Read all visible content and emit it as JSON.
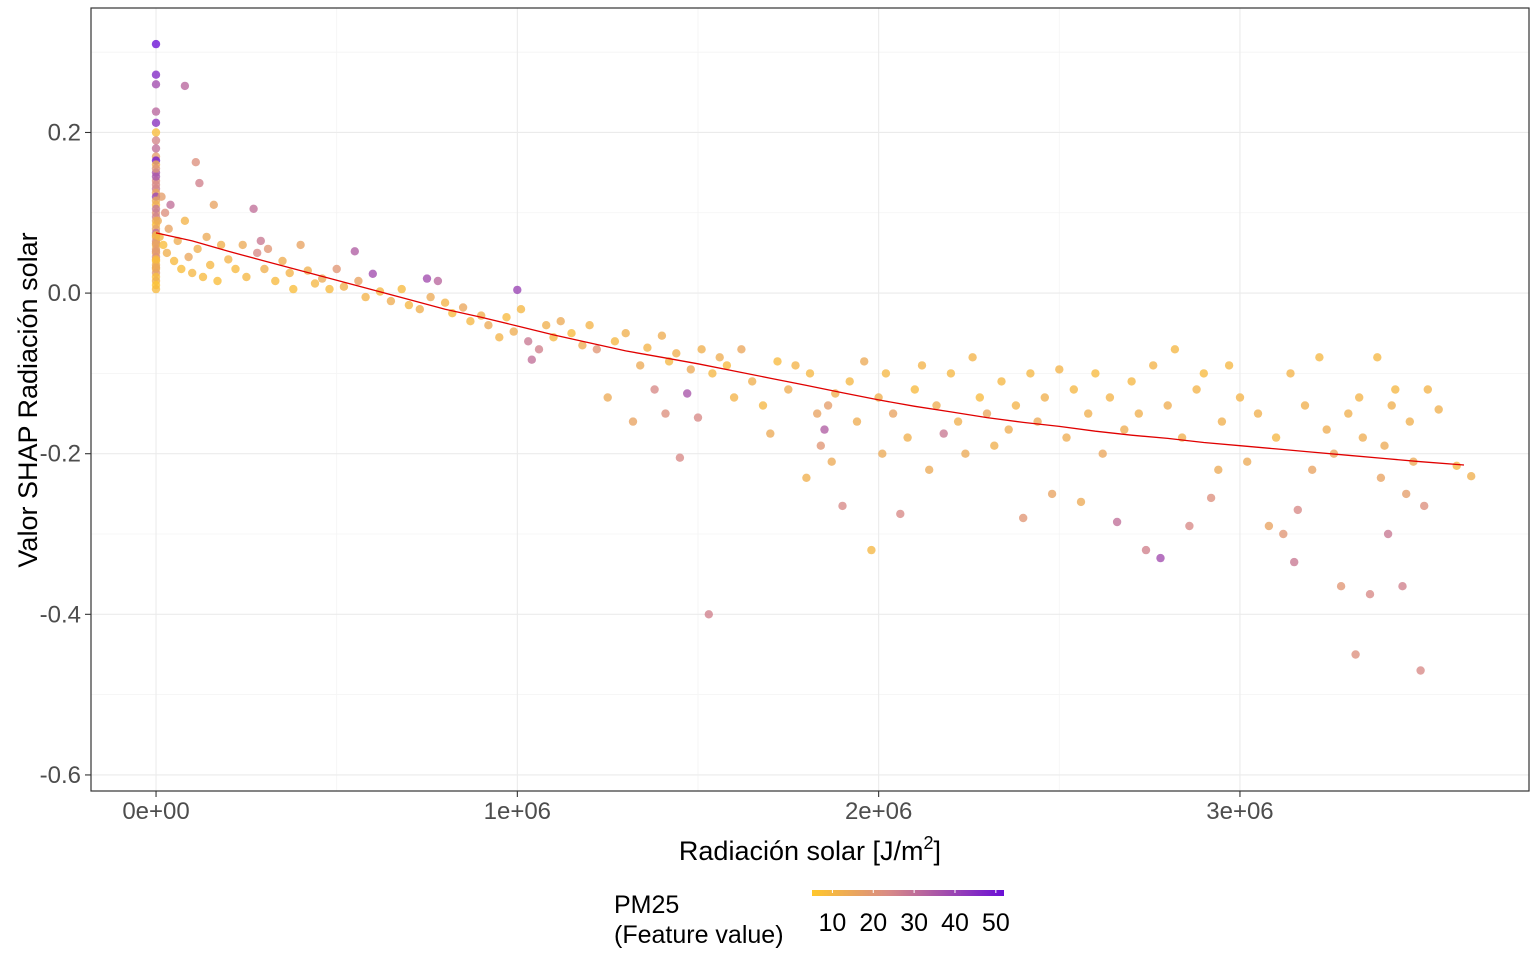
{
  "chart_data": {
    "type": "scatter",
    "xlabel": "Radiación solar [J/m",
    "xlabel_sup": "2",
    "xlabel_end": "]",
    "ylabel": "Valor SHAP Radiación solar",
    "xlim": [
      -180000,
      3800000
    ],
    "ylim": [
      -0.62,
      0.355
    ],
    "x_ticks": [
      0,
      1000000,
      2000000,
      3000000
    ],
    "x_tick_labels": [
      "0e+00",
      "1e+06",
      "2e+06",
      "3e+06"
    ],
    "y_ticks": [
      -0.6,
      -0.4,
      -0.2,
      0.0,
      0.2
    ],
    "y_tick_labels": [
      "-0.6",
      "-0.4",
      "-0.2",
      "0.0",
      "0.2"
    ],
    "grid": true,
    "legend": {
      "position": "bottom",
      "title_line1": "PM25",
      "title_line2": "(Feature value)",
      "range": [
        5,
        52
      ],
      "ticks": [
        10,
        20,
        30,
        40,
        50
      ],
      "tick_labels": [
        "10",
        "20",
        "30",
        "40",
        "50"
      ],
      "color_low": "#ffc72c",
      "color_mid": "#d88a86",
      "color_high": "#6a0fd6"
    },
    "trend_color": "#e00000",
    "trend_line": [
      [
        0,
        0.075
      ],
      [
        100000,
        0.065
      ],
      [
        200000,
        0.052
      ],
      [
        300000,
        0.04
      ],
      [
        400000,
        0.028
      ],
      [
        500000,
        0.016
      ],
      [
        600000,
        0.004
      ],
      [
        700000,
        -0.008
      ],
      [
        800000,
        -0.02
      ],
      [
        900000,
        -0.03
      ],
      [
        1000000,
        -0.041
      ],
      [
        1100000,
        -0.052
      ],
      [
        1200000,
        -0.062
      ],
      [
        1300000,
        -0.072
      ],
      [
        1400000,
        -0.08
      ],
      [
        1500000,
        -0.088
      ],
      [
        1600000,
        -0.097
      ],
      [
        1700000,
        -0.106
      ],
      [
        1800000,
        -0.115
      ],
      [
        1900000,
        -0.124
      ],
      [
        2000000,
        -0.133
      ],
      [
        2100000,
        -0.141
      ],
      [
        2200000,
        -0.148
      ],
      [
        2300000,
        -0.155
      ],
      [
        2400000,
        -0.161
      ],
      [
        2500000,
        -0.166
      ],
      [
        2600000,
        -0.172
      ],
      [
        2700000,
        -0.177
      ],
      [
        2800000,
        -0.181
      ],
      [
        2900000,
        -0.186
      ],
      [
        3000000,
        -0.19
      ],
      [
        3100000,
        -0.194
      ],
      [
        3200000,
        -0.198
      ],
      [
        3300000,
        -0.202
      ],
      [
        3400000,
        -0.206
      ],
      [
        3500000,
        -0.21
      ],
      [
        3620000,
        -0.214
      ]
    ],
    "points_format": "[radiacion, shap, pm25]",
    "points": [
      [
        0,
        0.31,
        52
      ],
      [
        0,
        0.272,
        46
      ],
      [
        0,
        0.26,
        38
      ],
      [
        0,
        0.226,
        32
      ],
      [
        0,
        0.212,
        44
      ],
      [
        0,
        0.2,
        8
      ],
      [
        0,
        0.19,
        25
      ],
      [
        0,
        0.18,
        30
      ],
      [
        0,
        0.17,
        18
      ],
      [
        0,
        0.165,
        50
      ],
      [
        0,
        0.16,
        12
      ],
      [
        0,
        0.15,
        35
      ],
      [
        0,
        0.14,
        22
      ],
      [
        0,
        0.13,
        28
      ],
      [
        0,
        0.125,
        15
      ],
      [
        0,
        0.12,
        40
      ],
      [
        0,
        0.11,
        10
      ],
      [
        0,
        0.1,
        20
      ],
      [
        0,
        0.095,
        26
      ],
      [
        0,
        0.09,
        14
      ],
      [
        0,
        0.085,
        8
      ],
      [
        0,
        0.08,
        17
      ],
      [
        0,
        0.075,
        30
      ],
      [
        0,
        0.07,
        12
      ],
      [
        0,
        0.065,
        22
      ],
      [
        0,
        0.06,
        9
      ],
      [
        0,
        0.055,
        16
      ],
      [
        0,
        0.05,
        11
      ],
      [
        0,
        0.045,
        24
      ],
      [
        0,
        0.04,
        7
      ],
      [
        0,
        0.035,
        13
      ],
      [
        0,
        0.03,
        10
      ],
      [
        0,
        0.025,
        19
      ],
      [
        0,
        0.02,
        8
      ],
      [
        0,
        0.015,
        12
      ],
      [
        0,
        0.01,
        6
      ],
      [
        0,
        0.005,
        9
      ],
      [
        0,
        0.145,
        36
      ],
      [
        0,
        0.155,
        21
      ],
      [
        0,
        0.105,
        28
      ],
      [
        0,
        0.115,
        14
      ],
      [
        0,
        0.135,
        24
      ],
      [
        0,
        0.062,
        18
      ],
      [
        0,
        0.032,
        15
      ],
      [
        0,
        0.052,
        20
      ],
      [
        0,
        0.042,
        9
      ],
      [
        0,
        0.072,
        11
      ],
      [
        5000,
        0.09,
        14
      ],
      [
        10000,
        0.07,
        10
      ],
      [
        15000,
        0.12,
        18
      ],
      [
        20000,
        0.06,
        8
      ],
      [
        25000,
        0.1,
        22
      ],
      [
        30000,
        0.05,
        12
      ],
      [
        35000,
        0.08,
        16
      ],
      [
        40000,
        0.11,
        30
      ],
      [
        50000,
        0.04,
        9
      ],
      [
        60000,
        0.065,
        13
      ],
      [
        70000,
        0.03,
        8
      ],
      [
        80000,
        0.258,
        32
      ],
      [
        80000,
        0.09,
        11
      ],
      [
        90000,
        0.045,
        15
      ],
      [
        100000,
        0.025,
        10
      ],
      [
        110000,
        0.163,
        22
      ],
      [
        115000,
        0.055,
        12
      ],
      [
        120000,
        0.137,
        26
      ],
      [
        130000,
        0.02,
        9
      ],
      [
        140000,
        0.07,
        14
      ],
      [
        150000,
        0.035,
        10
      ],
      [
        160000,
        0.11,
        16
      ],
      [
        170000,
        0.015,
        8
      ],
      [
        180000,
        0.06,
        12
      ],
      [
        200000,
        0.042,
        11
      ],
      [
        220000,
        0.03,
        9
      ],
      [
        240000,
        0.06,
        14
      ],
      [
        250000,
        0.02,
        10
      ],
      [
        270000,
        0.105,
        30
      ],
      [
        280000,
        0.05,
        24
      ],
      [
        290000,
        0.065,
        28
      ],
      [
        300000,
        0.03,
        12
      ],
      [
        310000,
        0.055,
        20
      ],
      [
        330000,
        0.015,
        9
      ],
      [
        350000,
        0.04,
        13
      ],
      [
        370000,
        0.025,
        11
      ],
      [
        380000,
        0.005,
        8
      ],
      [
        400000,
        0.06,
        16
      ],
      [
        420000,
        0.028,
        12
      ],
      [
        440000,
        0.012,
        10
      ],
      [
        460000,
        0.018,
        14
      ],
      [
        480000,
        0.005,
        9
      ],
      [
        500000,
        0.03,
        20
      ],
      [
        520000,
        0.008,
        12
      ],
      [
        550000,
        0.052,
        34
      ],
      [
        560000,
        0.015,
        16
      ],
      [
        580000,
        -0.005,
        11
      ],
      [
        600000,
        0.024,
        38
      ],
      [
        620000,
        0.002,
        10
      ],
      [
        650000,
        -0.01,
        13
      ],
      [
        680000,
        0.005,
        9
      ],
      [
        700000,
        -0.015,
        10
      ],
      [
        730000,
        -0.02,
        12
      ],
      [
        750000,
        0.018,
        38
      ],
      [
        760000,
        -0.005,
        14
      ],
      [
        780000,
        0.015,
        32
      ],
      [
        800000,
        -0.012,
        11
      ],
      [
        820000,
        -0.025,
        9
      ],
      [
        850000,
        -0.018,
        15
      ],
      [
        870000,
        -0.035,
        10
      ],
      [
        900000,
        -0.028,
        12
      ],
      [
        920000,
        -0.04,
        14
      ],
      [
        950000,
        -0.055,
        11
      ],
      [
        970000,
        -0.03,
        9
      ],
      [
        990000,
        -0.048,
        13
      ],
      [
        1000000,
        0.004,
        40
      ],
      [
        1010000,
        -0.02,
        10
      ],
      [
        1030000,
        -0.06,
        28
      ],
      [
        1040000,
        -0.083,
        30
      ],
      [
        1060000,
        -0.07,
        26
      ],
      [
        1080000,
        -0.04,
        12
      ],
      [
        1100000,
        -0.055,
        10
      ],
      [
        1120000,
        -0.035,
        14
      ],
      [
        1150000,
        -0.05,
        9
      ],
      [
        1180000,
        -0.065,
        13
      ],
      [
        1200000,
        -0.04,
        11
      ],
      [
        1220000,
        -0.07,
        20
      ],
      [
        1250000,
        -0.13,
        14
      ],
      [
        1270000,
        -0.06,
        10
      ],
      [
        1300000,
        -0.05,
        12
      ],
      [
        1320000,
        -0.16,
        16
      ],
      [
        1340000,
        -0.09,
        14
      ],
      [
        1360000,
        -0.068,
        11
      ],
      [
        1380000,
        -0.12,
        24
      ],
      [
        1400000,
        -0.053,
        13
      ],
      [
        1410000,
        -0.15,
        22
      ],
      [
        1420000,
        -0.085,
        10
      ],
      [
        1440000,
        -0.075,
        12
      ],
      [
        1450000,
        -0.205,
        24
      ],
      [
        1470000,
        -0.125,
        36
      ],
      [
        1480000,
        -0.095,
        14
      ],
      [
        1500000,
        -0.155,
        24
      ],
      [
        1510000,
        -0.07,
        12
      ],
      [
        1530000,
        -0.4,
        26
      ],
      [
        1540000,
        -0.1,
        10
      ],
      [
        1560000,
        -0.08,
        13
      ],
      [
        1580000,
        -0.09,
        9
      ],
      [
        1600000,
        -0.13,
        11
      ],
      [
        1620000,
        -0.07,
        15
      ],
      [
        1650000,
        -0.11,
        12
      ],
      [
        1680000,
        -0.14,
        10
      ],
      [
        1700000,
        -0.175,
        14
      ],
      [
        1720000,
        -0.085,
        9
      ],
      [
        1750000,
        -0.12,
        13
      ],
      [
        1770000,
        -0.09,
        11
      ],
      [
        1800000,
        -0.23,
        12
      ],
      [
        1810000,
        -0.1,
        10
      ],
      [
        1830000,
        -0.15,
        16
      ],
      [
        1840000,
        -0.19,
        20
      ],
      [
        1850000,
        -0.17,
        34
      ],
      [
        1860000,
        -0.14,
        18
      ],
      [
        1870000,
        -0.21,
        14
      ],
      [
        1880000,
        -0.125,
        12
      ],
      [
        1900000,
        -0.265,
        24
      ],
      [
        1920000,
        -0.11,
        10
      ],
      [
        1940000,
        -0.16,
        13
      ],
      [
        1960000,
        -0.085,
        14
      ],
      [
        1980000,
        -0.32,
        10
      ],
      [
        2000000,
        -0.13,
        12
      ],
      [
        2010000,
        -0.2,
        14
      ],
      [
        2020000,
        -0.1,
        10
      ],
      [
        2040000,
        -0.15,
        16
      ],
      [
        2060000,
        -0.275,
        24
      ],
      [
        2080000,
        -0.18,
        12
      ],
      [
        2100000,
        -0.12,
        9
      ],
      [
        2120000,
        -0.09,
        11
      ],
      [
        2140000,
        -0.22,
        14
      ],
      [
        2160000,
        -0.14,
        13
      ],
      [
        2180000,
        -0.175,
        28
      ],
      [
        2200000,
        -0.1,
        10
      ],
      [
        2220000,
        -0.16,
        12
      ],
      [
        2240000,
        -0.2,
        14
      ],
      [
        2260000,
        -0.08,
        11
      ],
      [
        2280000,
        -0.13,
        9
      ],
      [
        2300000,
        -0.15,
        15
      ],
      [
        2320000,
        -0.19,
        12
      ],
      [
        2340000,
        -0.11,
        10
      ],
      [
        2360000,
        -0.17,
        13
      ],
      [
        2380000,
        -0.14,
        11
      ],
      [
        2400000,
        -0.28,
        20
      ],
      [
        2420000,
        -0.1,
        10
      ],
      [
        2440000,
        -0.16,
        14
      ],
      [
        2460000,
        -0.13,
        12
      ],
      [
        2480000,
        -0.25,
        16
      ],
      [
        2500000,
        -0.095,
        11
      ],
      [
        2520000,
        -0.18,
        13
      ],
      [
        2540000,
        -0.12,
        10
      ],
      [
        2560000,
        -0.26,
        14
      ],
      [
        2580000,
        -0.15,
        12
      ],
      [
        2600000,
        -0.1,
        9
      ],
      [
        2620000,
        -0.2,
        15
      ],
      [
        2640000,
        -0.13,
        11
      ],
      [
        2660000,
        -0.285,
        30
      ],
      [
        2680000,
        -0.17,
        13
      ],
      [
        2700000,
        -0.11,
        10
      ],
      [
        2720000,
        -0.15,
        12
      ],
      [
        2740000,
        -0.32,
        26
      ],
      [
        2760000,
        -0.09,
        11
      ],
      [
        2780000,
        -0.33,
        38
      ],
      [
        2800000,
        -0.14,
        13
      ],
      [
        2820000,
        -0.07,
        10
      ],
      [
        2840000,
        -0.18,
        12
      ],
      [
        2860000,
        -0.29,
        24
      ],
      [
        2880000,
        -0.12,
        11
      ],
      [
        2900000,
        -0.1,
        9
      ],
      [
        2920000,
        -0.255,
        22
      ],
      [
        2940000,
        -0.22,
        14
      ],
      [
        2950000,
        -0.16,
        12
      ],
      [
        2970000,
        -0.09,
        10
      ],
      [
        3000000,
        -0.13,
        11
      ],
      [
        3020000,
        -0.21,
        14
      ],
      [
        3050000,
        -0.15,
        12
      ],
      [
        3080000,
        -0.29,
        16
      ],
      [
        3100000,
        -0.18,
        10
      ],
      [
        3120000,
        -0.3,
        20
      ],
      [
        3140000,
        -0.1,
        11
      ],
      [
        3150000,
        -0.335,
        28
      ],
      [
        3160000,
        -0.27,
        24
      ],
      [
        3180000,
        -0.14,
        12
      ],
      [
        3200000,
        -0.22,
        16
      ],
      [
        3220000,
        -0.08,
        10
      ],
      [
        3240000,
        -0.17,
        13
      ],
      [
        3260000,
        -0.2,
        15
      ],
      [
        3280000,
        -0.365,
        20
      ],
      [
        3300000,
        -0.15,
        12
      ],
      [
        3320000,
        -0.45,
        22
      ],
      [
        3330000,
        -0.13,
        11
      ],
      [
        3340000,
        -0.18,
        13
      ],
      [
        3360000,
        -0.375,
        24
      ],
      [
        3380000,
        -0.08,
        10
      ],
      [
        3390000,
        -0.23,
        16
      ],
      [
        3400000,
        -0.19,
        14
      ],
      [
        3410000,
        -0.3,
        28
      ],
      [
        3420000,
        -0.14,
        12
      ],
      [
        3430000,
        -0.12,
        10
      ],
      [
        3450000,
        -0.365,
        26
      ],
      [
        3460000,
        -0.25,
        18
      ],
      [
        3470000,
        -0.16,
        12
      ],
      [
        3480000,
        -0.21,
        14
      ],
      [
        3500000,
        -0.47,
        24
      ],
      [
        3510000,
        -0.265,
        22
      ],
      [
        3520000,
        -0.12,
        11
      ],
      [
        3550000,
        -0.145,
        12
      ],
      [
        3600000,
        -0.215,
        10
      ],
      [
        3640000,
        -0.228,
        12
      ]
    ]
  }
}
